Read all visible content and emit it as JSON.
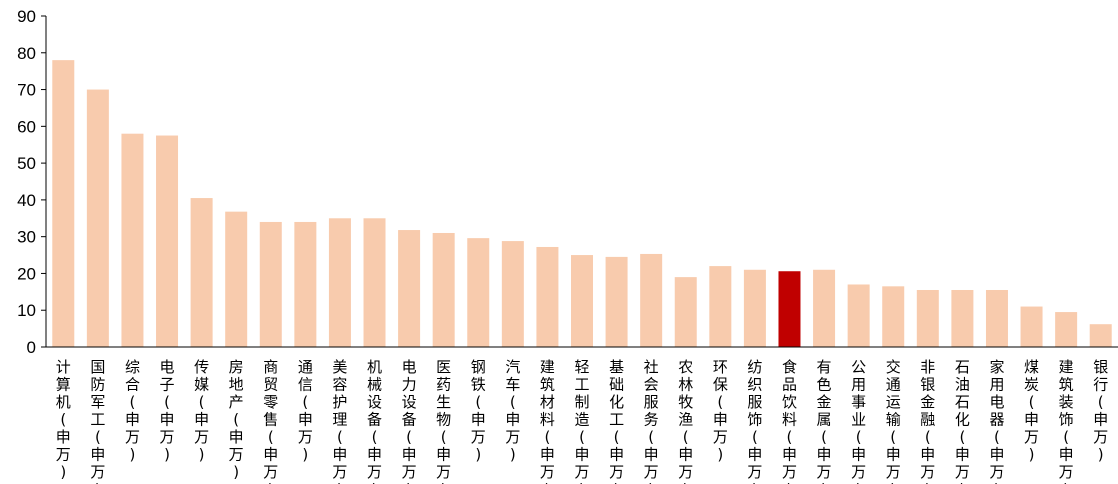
{
  "chart_data": {
    "type": "bar",
    "title": "",
    "xlabel": "",
    "ylabel": "",
    "ylim": [
      0,
      90
    ],
    "yticks": [
      0,
      10,
      20,
      30,
      40,
      50,
      60,
      70,
      80,
      90
    ],
    "grid": false,
    "legend": "none",
    "bar_color": "#F8CBAD",
    "highlight_color": "#C00000",
    "highlight_index": 21,
    "categories": [
      "计算机(申万)",
      "国防军工(申万)",
      "综合(申万)",
      "电子(申万)",
      "传媒(申万)",
      "房地产(申万)",
      "商贸零售(申万)",
      "通信(申万)",
      "美容护理(申万)",
      "机械设备(申万)",
      "电力设备(申万)",
      "医药生物(申万)",
      "钢铁(申万)",
      "汽车(申万)",
      "建筑材料(申万)",
      "轻工制造(申万)",
      "基础化工(申万)",
      "社会服务(申万)",
      "农林牧渔(申万)",
      "环保(申万)",
      "纺织服饰(申万)",
      "食品饮料(申万)",
      "有色金属(申万)",
      "公用事业(申万)",
      "交通运输(申万)",
      "非银金融(申万)",
      "石油石化(申万)",
      "家用电器(申万)",
      "煤炭(申万)",
      "建筑装饰(申万)",
      "银行(申万)"
    ],
    "values": [
      78,
      70,
      58,
      57.5,
      40.5,
      36.8,
      34,
      34,
      35,
      35,
      31.8,
      31,
      29.6,
      28.8,
      27.2,
      25,
      24.5,
      25.3,
      19,
      22,
      21,
      20.6,
      21,
      17,
      16.5,
      15.5,
      15.5,
      15.5,
      11,
      9.5,
      6.2
    ]
  }
}
